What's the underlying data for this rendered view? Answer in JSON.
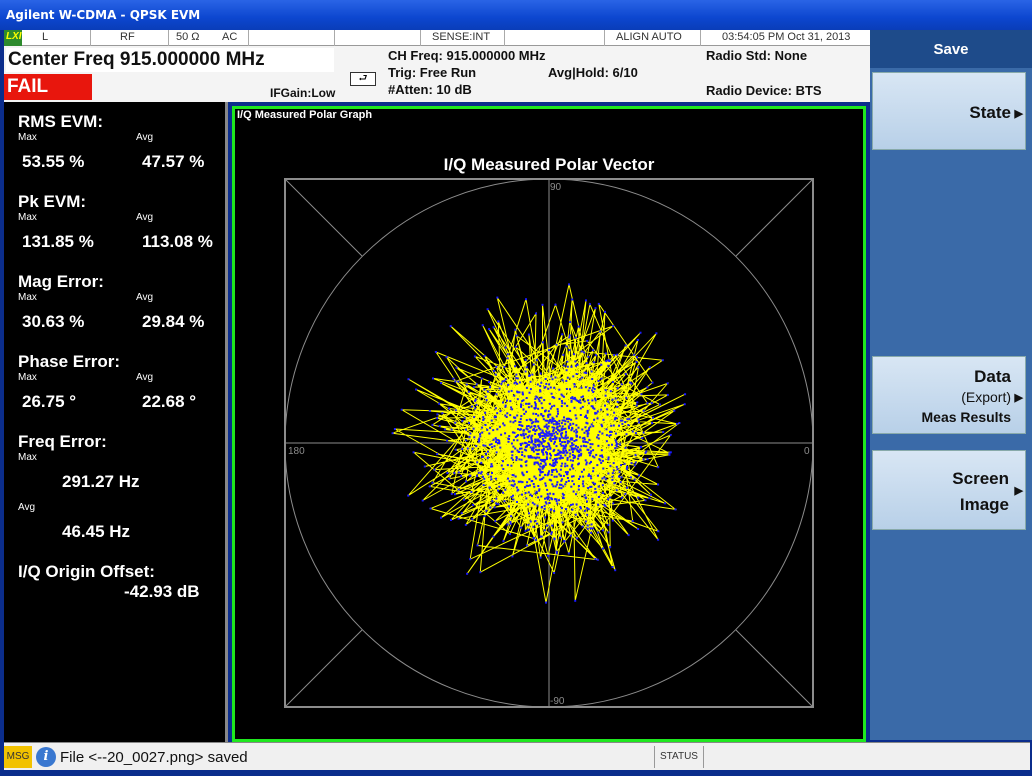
{
  "window": {
    "title": "Agilent W-CDMA - QPSK EVM"
  },
  "status_strip": {
    "lxi": "LXI",
    "input": "L",
    "rf": "RF",
    "impedance": "50 Ω",
    "coupling": "AC",
    "sense": "SENSE:INT",
    "align": "ALIGN AUTO",
    "datetime": "03:54:05 PM Oct 31, 2013"
  },
  "header": {
    "center_freq": "Center Freq 915.000000 MHz",
    "fail": "FAIL",
    "ifgain": "IFGain:Low",
    "ch_freq": "CH Freq: 915.000000 MHz",
    "trig": "Trig: Free Run",
    "avg_hold": "Avg|Hold: 6/10",
    "atten": "#Atten: 10 dB",
    "radio_std": "Radio Std: None",
    "radio_device": "Radio Device: BTS"
  },
  "metrics": {
    "max_label": "Max",
    "avg_label": "Avg",
    "rms_evm": {
      "label": "RMS EVM:",
      "max": "53.55 %",
      "avg": "47.57 %"
    },
    "pk_evm": {
      "label": "Pk EVM:",
      "max": "131.85 %",
      "avg": "113.08 %"
    },
    "mag_error": {
      "label": "Mag Error:",
      "max": "30.63 %",
      "avg": "29.84 %"
    },
    "phase_error": {
      "label": "Phase Error:",
      "max": "26.75 °",
      "avg": "22.68 °"
    },
    "freq_error": {
      "label": "Freq Error:",
      "max": "291.27 Hz",
      "avg": "46.45 Hz"
    },
    "iq_origin": {
      "label": "I/Q Origin Offset:",
      "value": "-42.93 dB"
    }
  },
  "graph": {
    "panel_title": "I/Q Measured Polar Graph",
    "plot_title": "I/Q Measured Polar Vector",
    "angle_labels": {
      "top": "90",
      "left": "180",
      "right": "0",
      "bottom": "-90"
    },
    "colors": {
      "trace": "#ffff00",
      "points": "#1a1aff",
      "grid": "#8c8c8c",
      "border": "#1fe81f"
    }
  },
  "softkeys": {
    "title": "Save",
    "state": "State",
    "data_line1": "Data",
    "data_line2": "(Export)",
    "data_line3": "Meas Results",
    "screen_line1": "Screen",
    "screen_line2": "Image"
  },
  "bottom": {
    "msg": "MSG",
    "message": "File <--20_0027.png> saved",
    "status": "STATUS"
  }
}
